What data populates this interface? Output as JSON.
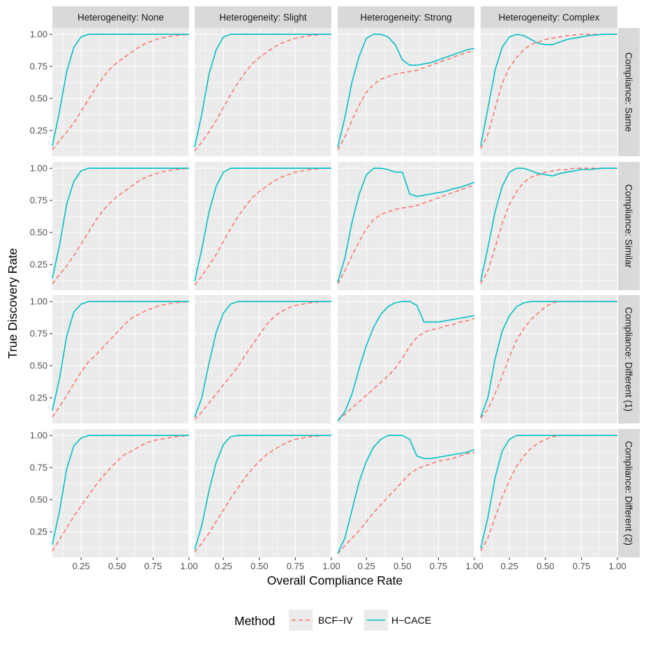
{
  "chart_data": {
    "type": "line",
    "facet_type": "grid",
    "xlabel": "Overall Compliance Rate",
    "ylabel": "True Discovery Rate",
    "xlim": [
      0.05,
      1.0
    ],
    "ylim": [
      0.05,
      1.05
    ],
    "x_ticks": [
      0.25,
      0.5,
      0.75,
      1.0
    ],
    "x_tick_labels": [
      "0.25",
      "0.50",
      "0.75",
      "1.00"
    ],
    "y_ticks": [
      0.25,
      0.5,
      0.75,
      1.0
    ],
    "y_tick_labels": [
      "0.25",
      "0.50",
      "0.75",
      "1.00"
    ],
    "col_facets": [
      "Heterogeneity: None",
      "Heterogeneity: Slight",
      "Heterogeneity: Strong",
      "Heterogeneity: Complex"
    ],
    "row_facets": [
      "Compliance: Same",
      "Compliance: Similar",
      "Compliance: Different (1)",
      "Compliance: Different (2)"
    ],
    "legend": {
      "title": "Method",
      "position": "bottom",
      "entries": [
        {
          "name": "BCF−IV",
          "color": "#F8766D",
          "dash": "dashed"
        },
        {
          "name": "H−CACE",
          "color": "#00BFC4",
          "dash": "solid"
        }
      ]
    },
    "x": [
      0.05,
      0.1,
      0.15,
      0.2,
      0.25,
      0.3,
      0.35,
      0.4,
      0.45,
      0.5,
      0.55,
      0.6,
      0.65,
      0.7,
      0.75,
      0.8,
      0.85,
      0.9,
      0.95,
      1.0
    ],
    "panels": [
      {
        "row": 0,
        "col": 0,
        "series": [
          {
            "name": "BCF−IV",
            "values": [
              0.1,
              0.17,
              0.24,
              0.31,
              0.4,
              0.49,
              0.58,
              0.66,
              0.73,
              0.78,
              0.82,
              0.86,
              0.9,
              0.93,
              0.95,
              0.97,
              0.98,
              0.99,
              0.995,
              1.0
            ]
          },
          {
            "name": "H−CACE",
            "values": [
              0.13,
              0.4,
              0.71,
              0.9,
              0.98,
              1.0,
              1.0,
              1.0,
              1.0,
              1.0,
              1.0,
              1.0,
              1.0,
              1.0,
              1.0,
              1.0,
              1.0,
              1.0,
              1.0,
              1.0
            ]
          }
        ]
      },
      {
        "row": 0,
        "col": 1,
        "series": [
          {
            "name": "BCF−IV",
            "values": [
              0.09,
              0.16,
              0.24,
              0.33,
              0.43,
              0.53,
              0.62,
              0.7,
              0.77,
              0.82,
              0.86,
              0.9,
              0.93,
              0.95,
              0.97,
              0.98,
              0.99,
              0.995,
              1.0,
              1.0
            ]
          },
          {
            "name": "H−CACE",
            "values": [
              0.12,
              0.38,
              0.69,
              0.88,
              0.98,
              1.0,
              1.0,
              1.0,
              1.0,
              1.0,
              1.0,
              1.0,
              1.0,
              1.0,
              1.0,
              1.0,
              1.0,
              1.0,
              1.0,
              1.0
            ]
          }
        ]
      },
      {
        "row": 0,
        "col": 2,
        "series": [
          {
            "name": "BCF−IV",
            "values": [
              0.1,
              0.2,
              0.33,
              0.45,
              0.55,
              0.61,
              0.65,
              0.67,
              0.69,
              0.7,
              0.71,
              0.72,
              0.74,
              0.76,
              0.78,
              0.8,
              0.82,
              0.84,
              0.86,
              0.87
            ]
          },
          {
            "name": "H−CACE",
            "values": [
              0.12,
              0.35,
              0.63,
              0.83,
              0.97,
              1.0,
              1.0,
              0.98,
              0.92,
              0.8,
              0.76,
              0.76,
              0.77,
              0.78,
              0.8,
              0.82,
              0.84,
              0.86,
              0.88,
              0.89
            ]
          }
        ]
      },
      {
        "row": 0,
        "col": 3,
        "series": [
          {
            "name": "BCF−IV",
            "values": [
              0.11,
              0.22,
              0.42,
              0.62,
              0.74,
              0.82,
              0.88,
              0.92,
              0.94,
              0.96,
              0.97,
              0.98,
              0.99,
              0.995,
              1.0,
              1.0,
              1.0,
              1.0,
              1.0,
              1.0
            ]
          },
          {
            "name": "H−CACE",
            "values": [
              0.13,
              0.42,
              0.72,
              0.9,
              0.98,
              1.0,
              0.99,
              0.96,
              0.93,
              0.92,
              0.92,
              0.94,
              0.96,
              0.97,
              0.98,
              0.99,
              0.995,
              1.0,
              1.0,
              1.0
            ]
          }
        ]
      },
      {
        "row": 1,
        "col": 0,
        "series": [
          {
            "name": "BCF−IV",
            "values": [
              0.1,
              0.17,
              0.24,
              0.32,
              0.41,
              0.5,
              0.59,
              0.67,
              0.73,
              0.78,
              0.82,
              0.86,
              0.9,
              0.93,
              0.95,
              0.97,
              0.98,
              0.99,
              0.995,
              1.0
            ]
          },
          {
            "name": "H−CACE",
            "values": [
              0.14,
              0.4,
              0.72,
              0.9,
              0.98,
              1.0,
              1.0,
              1.0,
              1.0,
              1.0,
              1.0,
              1.0,
              1.0,
              1.0,
              1.0,
              1.0,
              1.0,
              1.0,
              1.0,
              1.0
            ]
          }
        ]
      },
      {
        "row": 1,
        "col": 1,
        "series": [
          {
            "name": "BCF−IV",
            "values": [
              0.09,
              0.16,
              0.24,
              0.33,
              0.43,
              0.53,
              0.62,
              0.7,
              0.77,
              0.82,
              0.86,
              0.9,
              0.93,
              0.95,
              0.97,
              0.98,
              0.99,
              0.995,
              1.0,
              1.0
            ]
          },
          {
            "name": "H−CACE",
            "values": [
              0.12,
              0.37,
              0.66,
              0.86,
              0.97,
              1.0,
              1.0,
              1.0,
              1.0,
              1.0,
              1.0,
              1.0,
              1.0,
              1.0,
              1.0,
              1.0,
              1.0,
              1.0,
              1.0,
              1.0
            ]
          }
        ]
      },
      {
        "row": 1,
        "col": 2,
        "series": [
          {
            "name": "BCF−IV",
            "values": [
              0.1,
              0.2,
              0.32,
              0.43,
              0.53,
              0.6,
              0.64,
              0.66,
              0.68,
              0.69,
              0.7,
              0.71,
              0.73,
              0.75,
              0.77,
              0.79,
              0.81,
              0.83,
              0.85,
              0.87
            ]
          },
          {
            "name": "H−CACE",
            "values": [
              0.11,
              0.3,
              0.58,
              0.8,
              0.95,
              1.0,
              1.0,
              0.99,
              0.97,
              0.97,
              0.8,
              0.78,
              0.79,
              0.8,
              0.81,
              0.82,
              0.84,
              0.85,
              0.87,
              0.89
            ]
          }
        ]
      },
      {
        "row": 1,
        "col": 3,
        "series": [
          {
            "name": "BCF−IV",
            "values": [
              0.1,
              0.2,
              0.38,
              0.57,
              0.72,
              0.82,
              0.89,
              0.93,
              0.95,
              0.97,
              0.98,
              0.99,
              0.99,
              1.0,
              1.0,
              1.0,
              1.0,
              1.0,
              1.0,
              1.0
            ]
          },
          {
            "name": "H−CACE",
            "values": [
              0.12,
              0.38,
              0.66,
              0.86,
              0.97,
              1.0,
              1.0,
              0.98,
              0.96,
              0.95,
              0.94,
              0.96,
              0.97,
              0.98,
              0.99,
              0.99,
              0.995,
              1.0,
              1.0,
              1.0
            ]
          }
        ]
      },
      {
        "row": 2,
        "col": 0,
        "series": [
          {
            "name": "BCF−IV",
            "values": [
              0.1,
              0.18,
              0.27,
              0.36,
              0.45,
              0.53,
              0.58,
              0.64,
              0.7,
              0.76,
              0.82,
              0.87,
              0.9,
              0.93,
              0.95,
              0.97,
              0.98,
              0.99,
              0.995,
              1.0
            ]
          },
          {
            "name": "H−CACE",
            "values": [
              0.15,
              0.4,
              0.73,
              0.92,
              0.98,
              1.0,
              1.0,
              1.0,
              1.0,
              1.0,
              1.0,
              1.0,
              1.0,
              1.0,
              1.0,
              1.0,
              1.0,
              1.0,
              1.0,
              1.0
            ]
          }
        ]
      },
      {
        "row": 2,
        "col": 1,
        "series": [
          {
            "name": "BCF−IV",
            "values": [
              0.08,
              0.14,
              0.21,
              0.28,
              0.35,
              0.42,
              0.49,
              0.58,
              0.66,
              0.74,
              0.82,
              0.88,
              0.92,
              0.95,
              0.97,
              0.98,
              0.99,
              0.995,
              1.0,
              1.0
            ]
          },
          {
            "name": "H−CACE",
            "values": [
              0.1,
              0.25,
              0.52,
              0.76,
              0.91,
              0.98,
              1.0,
              1.0,
              1.0,
              1.0,
              1.0,
              1.0,
              1.0,
              1.0,
              1.0,
              1.0,
              1.0,
              1.0,
              1.0,
              1.0
            ]
          }
        ]
      },
      {
        "row": 2,
        "col": 2,
        "series": [
          {
            "name": "BCF−IV",
            "values": [
              0.07,
              0.12,
              0.17,
              0.22,
              0.27,
              0.32,
              0.37,
              0.42,
              0.48,
              0.56,
              0.65,
              0.72,
              0.76,
              0.78,
              0.79,
              0.81,
              0.82,
              0.84,
              0.85,
              0.87
            ]
          },
          {
            "name": "H−CACE",
            "values": [
              0.07,
              0.14,
              0.28,
              0.48,
              0.66,
              0.8,
              0.9,
              0.96,
              0.99,
              1.0,
              1.0,
              0.97,
              0.84,
              0.84,
              0.84,
              0.85,
              0.86,
              0.87,
              0.88,
              0.89
            ]
          }
        ]
      },
      {
        "row": 2,
        "col": 3,
        "series": [
          {
            "name": "BCF−IV",
            "values": [
              0.09,
              0.16,
              0.28,
              0.42,
              0.57,
              0.7,
              0.79,
              0.86,
              0.91,
              0.96,
              0.99,
              1.0,
              1.0,
              1.0,
              1.0,
              1.0,
              1.0,
              1.0,
              1.0,
              1.0
            ]
          },
          {
            "name": "H−CACE",
            "values": [
              0.1,
              0.25,
              0.55,
              0.77,
              0.89,
              0.96,
              0.99,
              1.0,
              1.0,
              1.0,
              1.0,
              1.0,
              1.0,
              1.0,
              1.0,
              1.0,
              1.0,
              1.0,
              1.0,
              1.0
            ]
          }
        ]
      },
      {
        "row": 3,
        "col": 0,
        "series": [
          {
            "name": "BCF−IV",
            "values": [
              0.1,
              0.19,
              0.28,
              0.37,
              0.45,
              0.53,
              0.61,
              0.68,
              0.74,
              0.8,
              0.85,
              0.88,
              0.91,
              0.94,
              0.96,
              0.97,
              0.98,
              0.99,
              0.995,
              1.0
            ]
          },
          {
            "name": "H−CACE",
            "values": [
              0.15,
              0.41,
              0.74,
              0.92,
              0.98,
              1.0,
              1.0,
              1.0,
              1.0,
              1.0,
              1.0,
              1.0,
              1.0,
              1.0,
              1.0,
              1.0,
              1.0,
              1.0,
              1.0,
              1.0
            ]
          }
        ]
      },
      {
        "row": 3,
        "col": 1,
        "series": [
          {
            "name": "BCF−IV",
            "values": [
              0.09,
              0.16,
              0.24,
              0.33,
              0.42,
              0.51,
              0.59,
              0.67,
              0.74,
              0.8,
              0.85,
              0.89,
              0.92,
              0.95,
              0.97,
              0.98,
              0.99,
              0.995,
              1.0,
              1.0
            ]
          },
          {
            "name": "H−CACE",
            "values": [
              0.11,
              0.3,
              0.57,
              0.79,
              0.93,
              0.99,
              1.0,
              1.0,
              1.0,
              1.0,
              1.0,
              1.0,
              1.0,
              1.0,
              1.0,
              1.0,
              1.0,
              1.0,
              1.0,
              1.0
            ]
          }
        ]
      },
      {
        "row": 3,
        "col": 2,
        "series": [
          {
            "name": "BCF−IV",
            "values": [
              0.08,
              0.14,
              0.2,
              0.26,
              0.33,
              0.4,
              0.46,
              0.52,
              0.58,
              0.64,
              0.7,
              0.74,
              0.76,
              0.78,
              0.8,
              0.81,
              0.82,
              0.84,
              0.86,
              0.87
            ]
          },
          {
            "name": "H−CACE",
            "values": [
              0.08,
              0.2,
              0.42,
              0.64,
              0.8,
              0.91,
              0.97,
              1.0,
              1.0,
              1.0,
              0.97,
              0.84,
              0.82,
              0.82,
              0.83,
              0.84,
              0.85,
              0.86,
              0.87,
              0.89
            ]
          }
        ]
      },
      {
        "row": 3,
        "col": 3,
        "series": [
          {
            "name": "BCF−IV",
            "values": [
              0.1,
              0.2,
              0.36,
              0.52,
              0.65,
              0.76,
              0.84,
              0.9,
              0.94,
              0.97,
              0.99,
              1.0,
              1.0,
              1.0,
              1.0,
              1.0,
              1.0,
              1.0,
              1.0,
              1.0
            ]
          },
          {
            "name": "H−CACE",
            "values": [
              0.12,
              0.36,
              0.67,
              0.88,
              0.97,
              1.0,
              1.0,
              1.0,
              1.0,
              1.0,
              1.0,
              1.0,
              1.0,
              1.0,
              1.0,
              1.0,
              1.0,
              1.0,
              1.0,
              1.0
            ]
          }
        ]
      }
    ]
  }
}
